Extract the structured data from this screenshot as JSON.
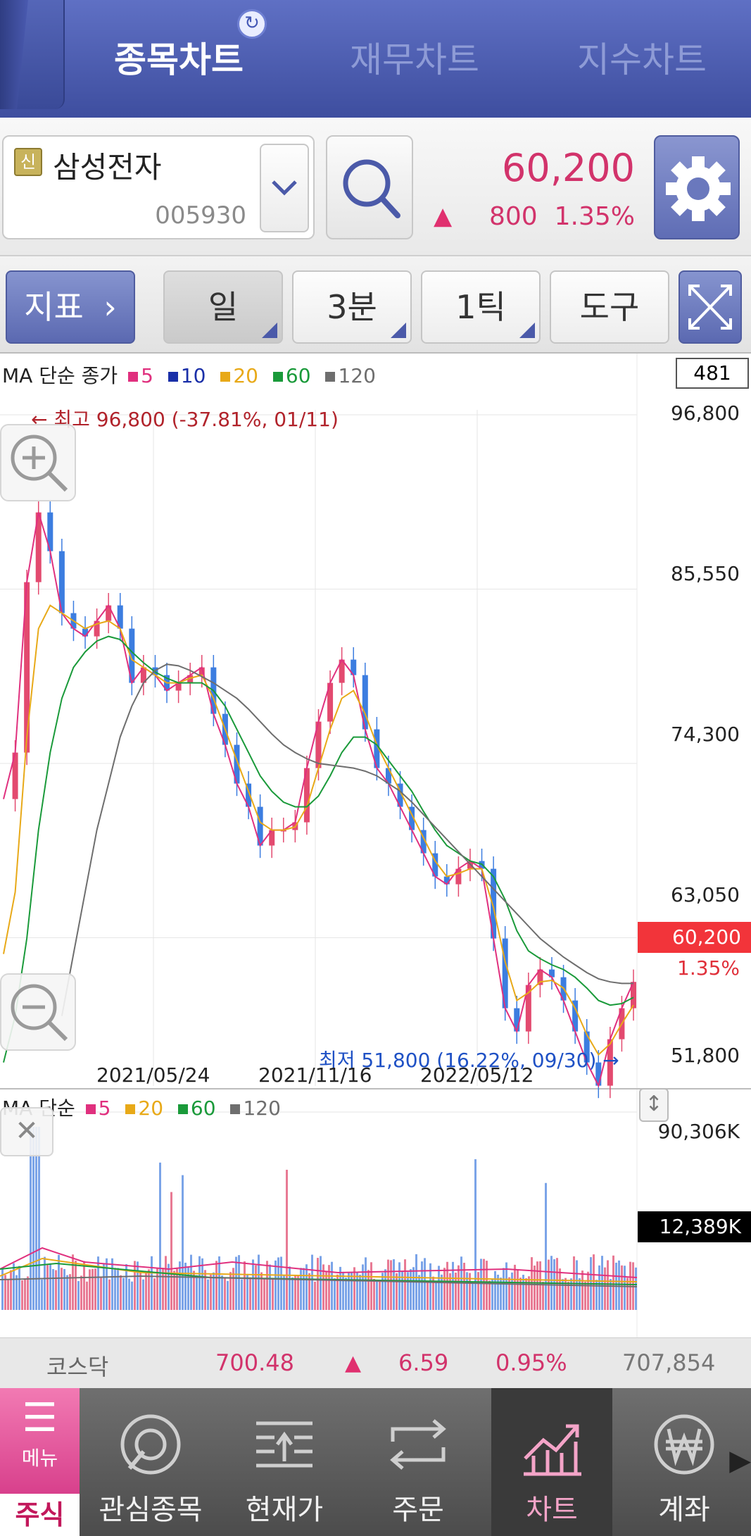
{
  "tabs": [
    {
      "label": "종목차트"
    },
    {
      "label": "재무차트"
    },
    {
      "label": "지수차트"
    }
  ],
  "stock": {
    "badge": "신",
    "name": "삼성전자",
    "code": "005930",
    "price": "60,200",
    "change": "800",
    "rate": "1.35%",
    "direction": "up"
  },
  "toolbar": {
    "indicator": "지표",
    "period_day": "일",
    "period_min": "3분",
    "period_tick": "1틱",
    "tools": "도구"
  },
  "price_panel": {
    "legend_title": "MA 단순 종가",
    "legend": [
      {
        "label": "5",
        "color": "#e0307e"
      },
      {
        "label": "10",
        "color": "#1a2fa8"
      },
      {
        "label": "20",
        "color": "#e8a918"
      },
      {
        "label": "60",
        "color": "#1a9a3a"
      },
      {
        "label": "120",
        "color": "#6e6e6e"
      }
    ],
    "count": "481",
    "y_labels": [
      "96,800",
      "85,550",
      "74,300",
      "63,050",
      "51,800"
    ],
    "current_price": "60,200",
    "current_rate": "1.35%",
    "high_note": "← 최고 96,800 (-37.81%, 01/11)",
    "low_note": "최저 51,800 (16.22%, 09/30) →",
    "x_labels": [
      "2021/05/24",
      "2021/11/16",
      "2022/05/12"
    ]
  },
  "volume_panel": {
    "legend_title": "MA 단순",
    "legend": [
      {
        "label": "5",
        "color": "#e0307e"
      },
      {
        "label": "20",
        "color": "#e8a918"
      },
      {
        "label": "60",
        "color": "#1a9a3a"
      },
      {
        "label": "120",
        "color": "#6e6e6e"
      }
    ],
    "max_label": "90,306K",
    "current_label": "12,389K"
  },
  "chart_data": {
    "type": "line",
    "title": "",
    "xlabel": "",
    "ylabel": "",
    "ylim": [
      51800,
      96800
    ],
    "x_ticks": [
      "2021/05/24",
      "2021/11/16",
      "2022/05/12"
    ],
    "series": [
      {
        "name": "5",
        "values": [
          72000,
          75000,
          86000,
          90500,
          88000,
          84000,
          83000,
          82500,
          83500,
          84500,
          83000,
          79500,
          80500,
          80000,
          79000,
          79500,
          80000,
          80500,
          77500,
          75500,
          73000,
          71500,
          69000,
          70000,
          70000,
          70500,
          74000,
          77000,
          79500,
          81000,
          80000,
          76500,
          74000,
          73000,
          71500,
          70000,
          68500,
          67000,
          66500,
          67500,
          68000,
          67500,
          63000,
          58500,
          57000,
          60000,
          61000,
          60500,
          59000,
          57000,
          55000,
          53500,
          56500,
          58500,
          60200
        ]
      },
      {
        "name": "20",
        "values": [
          62000,
          66000,
          76000,
          83000,
          84500,
          84000,
          83500,
          83000,
          83300,
          83500,
          83000,
          81000,
          80500,
          80000,
          79500,
          79500,
          79800,
          80000,
          78500,
          76500,
          74500,
          72500,
          70500,
          70000,
          70000,
          70200,
          71500,
          74000,
          76500,
          78500,
          79000,
          77500,
          75500,
          74000,
          72500,
          71000,
          69500,
          68000,
          67000,
          67200,
          67500,
          67500,
          65000,
          61500,
          59000,
          59500,
          60200,
          60300,
          59800,
          58500,
          56800,
          55500,
          56200,
          57500,
          58700
        ]
      },
      {
        "name": "60",
        "values": [
          55000,
          58000,
          63000,
          70000,
          75000,
          78500,
          80500,
          81500,
          82200,
          82500,
          82300,
          81500,
          80800,
          80200,
          79800,
          79500,
          79500,
          79500,
          79000,
          78000,
          76500,
          75000,
          73500,
          72500,
          71800,
          71500,
          71500,
          72200,
          73500,
          75000,
          76000,
          76000,
          75500,
          74500,
          73500,
          72500,
          71200,
          70000,
          69000,
          68500,
          68000,
          67800,
          67000,
          65500,
          63500,
          62200,
          61700,
          61300,
          61000,
          60500,
          59800,
          59000,
          58700,
          58800,
          59200
        ]
      },
      {
        "name": "120",
        "values": [
          null,
          null,
          null,
          null,
          null,
          58000,
          62000,
          66000,
          70000,
          73000,
          76000,
          78000,
          79500,
          80300,
          80700,
          80600,
          80300,
          79900,
          79500,
          79000,
          78500,
          77800,
          77000,
          76200,
          75500,
          75000,
          74600,
          74300,
          74200,
          74100,
          74000,
          73800,
          73500,
          73000,
          72500,
          71800,
          71000,
          70200,
          69400,
          68600,
          67800,
          67000,
          66200,
          65400,
          64600,
          63800,
          63000,
          62400,
          61800,
          61300,
          60800,
          60400,
          60200,
          60100,
          60100
        ]
      }
    ]
  },
  "index_bar": {
    "name": "코스닥",
    "value": "700.48",
    "change": "6.59",
    "rate": "0.95%",
    "volume": "707,854"
  },
  "bottom_nav": {
    "menu": "메뉴",
    "stock": "주식",
    "items": [
      {
        "label": "관심종목",
        "icon": "watchlist-icon"
      },
      {
        "label": "현재가",
        "icon": "current-price-icon"
      },
      {
        "label": "주문",
        "icon": "order-icon"
      },
      {
        "label": "차트",
        "icon": "chart-icon"
      },
      {
        "label": "계좌",
        "icon": "won-icon"
      }
    ]
  }
}
